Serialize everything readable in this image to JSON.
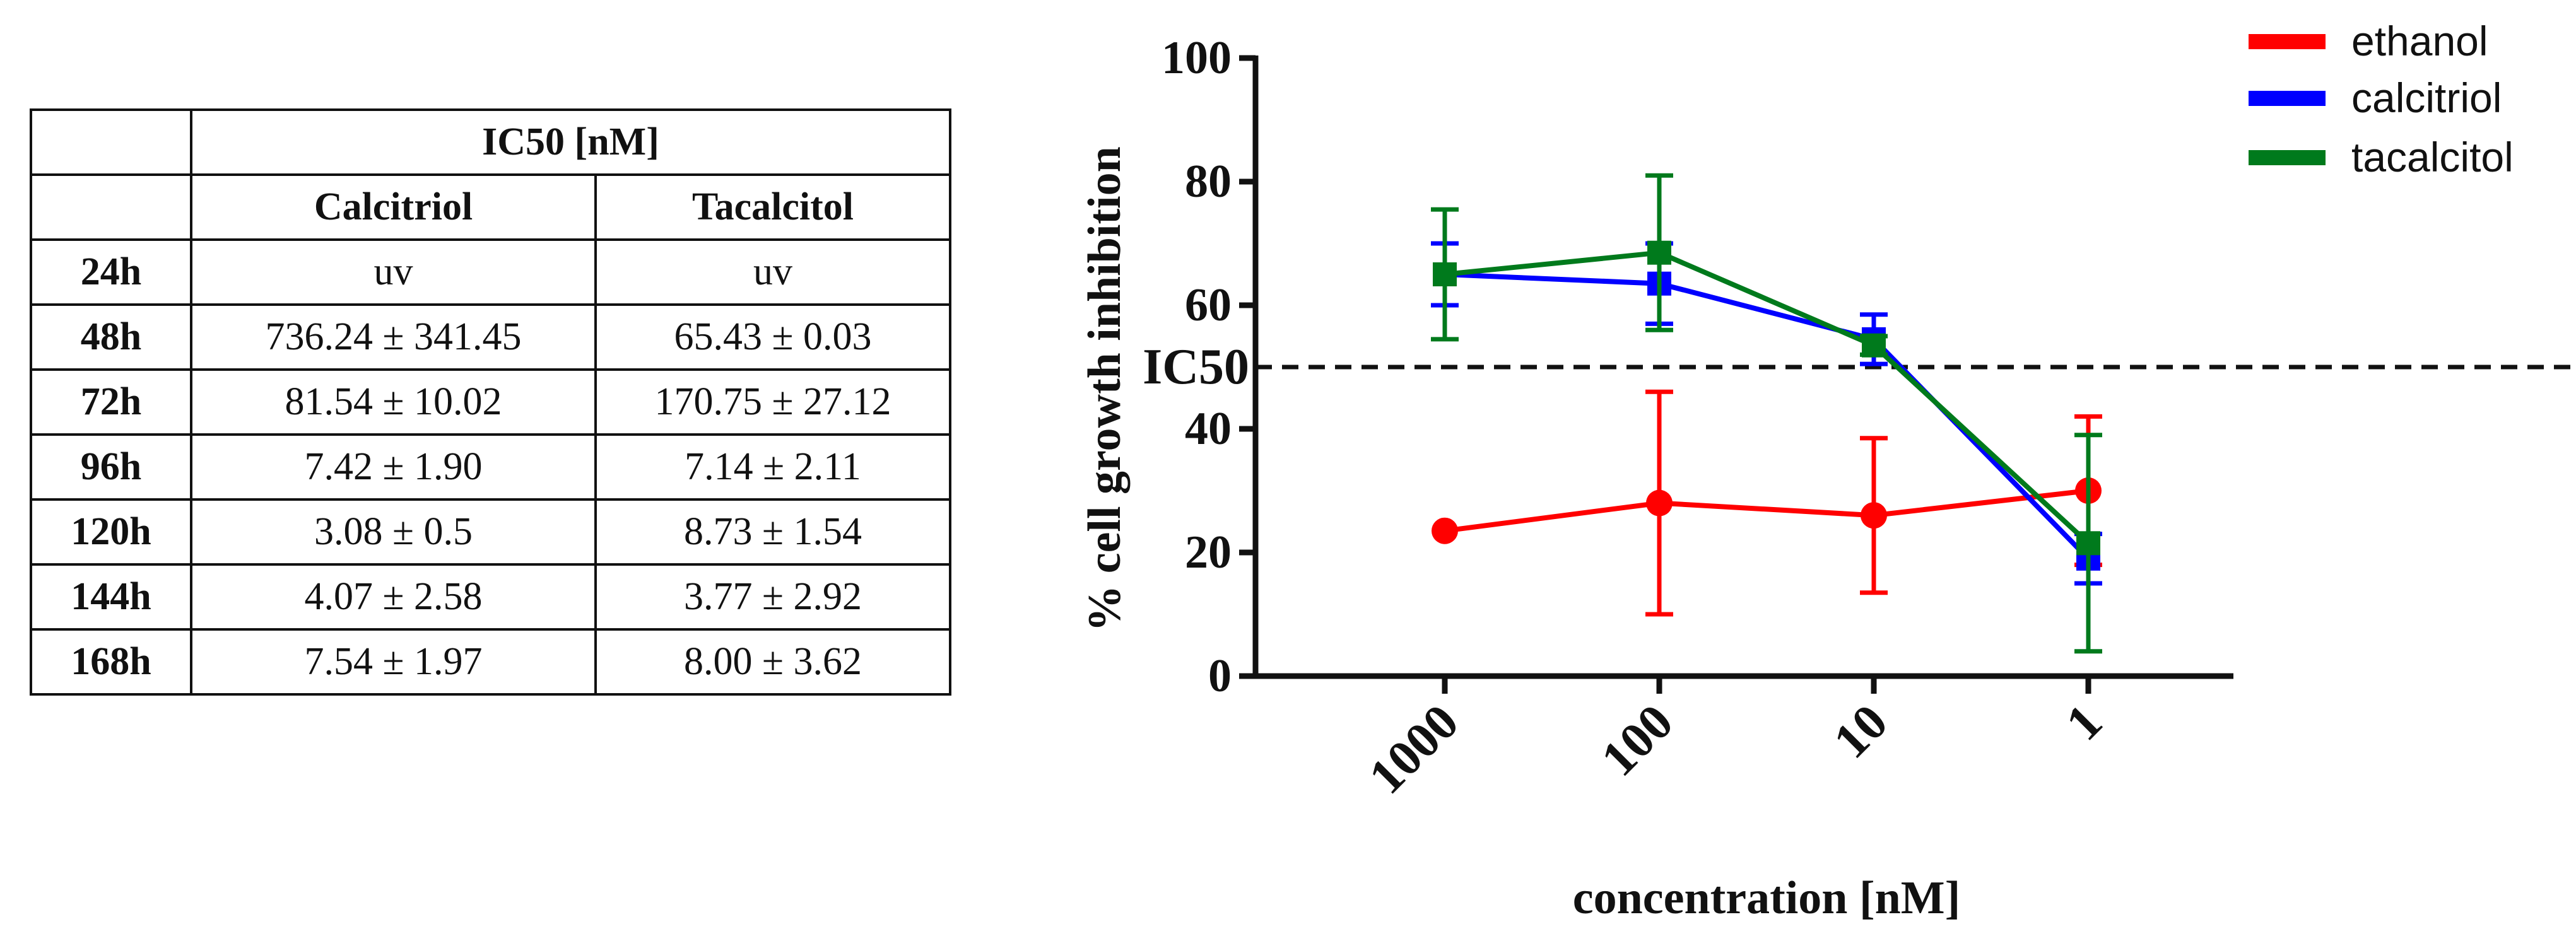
{
  "table": {
    "header_top": "IC50 [nM]",
    "col1": "Calcitriol",
    "col2": "Tacalcitol",
    "rows": [
      {
        "label": "24h",
        "calcitriol": "uv",
        "tacalcitol": "uv"
      },
      {
        "label": "48h",
        "calcitriol": "736.24 ± 341.45",
        "tacalcitol": "65.43 ± 0.03"
      },
      {
        "label": "72h",
        "calcitriol": "81.54 ± 10.02",
        "tacalcitol": "170.75 ± 27.12"
      },
      {
        "label": "96h",
        "calcitriol": "7.42 ± 1.90",
        "tacalcitol": "7.14 ± 2.11"
      },
      {
        "label": "120h",
        "calcitriol": "3.08 ± 0.5",
        "tacalcitol": "8.73 ± 1.54"
      },
      {
        "label": "144h",
        "calcitriol": "4.07 ± 2.58",
        "tacalcitol": "3.77 ± 2.92"
      },
      {
        "label": "168h",
        "calcitriol": "7.54 ± 1.97",
        "tacalcitol": "8.00 ± 3.62"
      }
    ]
  },
  "chart_data": {
    "type": "line",
    "title": "",
    "xlabel": "concentration [nM]",
    "ylabel": "% cell growth inhibition",
    "categories": [
      "1000",
      "100",
      "10",
      "1"
    ],
    "ylim": [
      0,
      100
    ],
    "yticks": [
      0,
      20,
      40,
      60,
      80,
      100
    ],
    "reference_line": {
      "label": "IC50",
      "value": 50
    },
    "series": [
      {
        "name": "ethanol",
        "color": "#ff0000",
        "marker": "circle",
        "values": [
          23.5,
          28,
          26,
          30
        ],
        "errors": [
          0,
          18,
          12.5,
          12
        ]
      },
      {
        "name": "calcitriol",
        "color": "#0000ff",
        "marker": "square",
        "values": [
          65,
          63.5,
          54.5,
          19
        ],
        "errors": [
          5,
          6.5,
          4,
          4
        ]
      },
      {
        "name": "tacalcitol",
        "color": "#007a1c",
        "marker": "square",
        "values": [
          65,
          68.5,
          53.5,
          21.5
        ],
        "errors": [
          10.5,
          12.5,
          1.5,
          17.5
        ]
      }
    ],
    "legend_position": "top-right"
  }
}
